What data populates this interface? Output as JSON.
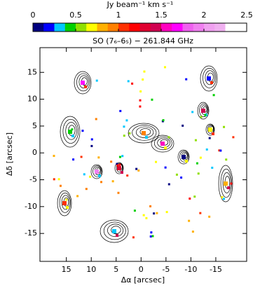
{
  "chart_data": {
    "type": "image",
    "title": "SO (7₆–6₅) − 261.844 GHz",
    "x_label": "Δα [arcsec]",
    "y_label": "Δδ [arcsec]",
    "xlim": [
      20.3,
      -21.2
    ],
    "ylim": [
      -20.2,
      19.6
    ],
    "xticks": [
      15,
      10,
      5,
      0,
      -5,
      -10,
      -15
    ],
    "yticks": [
      -15,
      -10,
      -5,
      0,
      5,
      10,
      15
    ],
    "colorbar": {
      "label": "Jy beam⁻¹ km s⁻¹",
      "lim": [
        0,
        2.5
      ],
      "ticks": [
        0,
        0.5,
        1,
        1.5,
        2,
        2.5
      ],
      "colors": [
        "#000080",
        "#0000ff",
        "#00c8ff",
        "#00d000",
        "#90e000",
        "#ffff00",
        "#ffb000",
        "#ff8000",
        "#ff3000",
        "#ff0000",
        "#e00030",
        "#d00050",
        "#ff00c0",
        "#ff00ff",
        "#f060f0",
        "#f080f0",
        "#f0a0f0",
        "#f0b0f0",
        "#ffffff",
        "#ffffff"
      ]
    }
  }
}
